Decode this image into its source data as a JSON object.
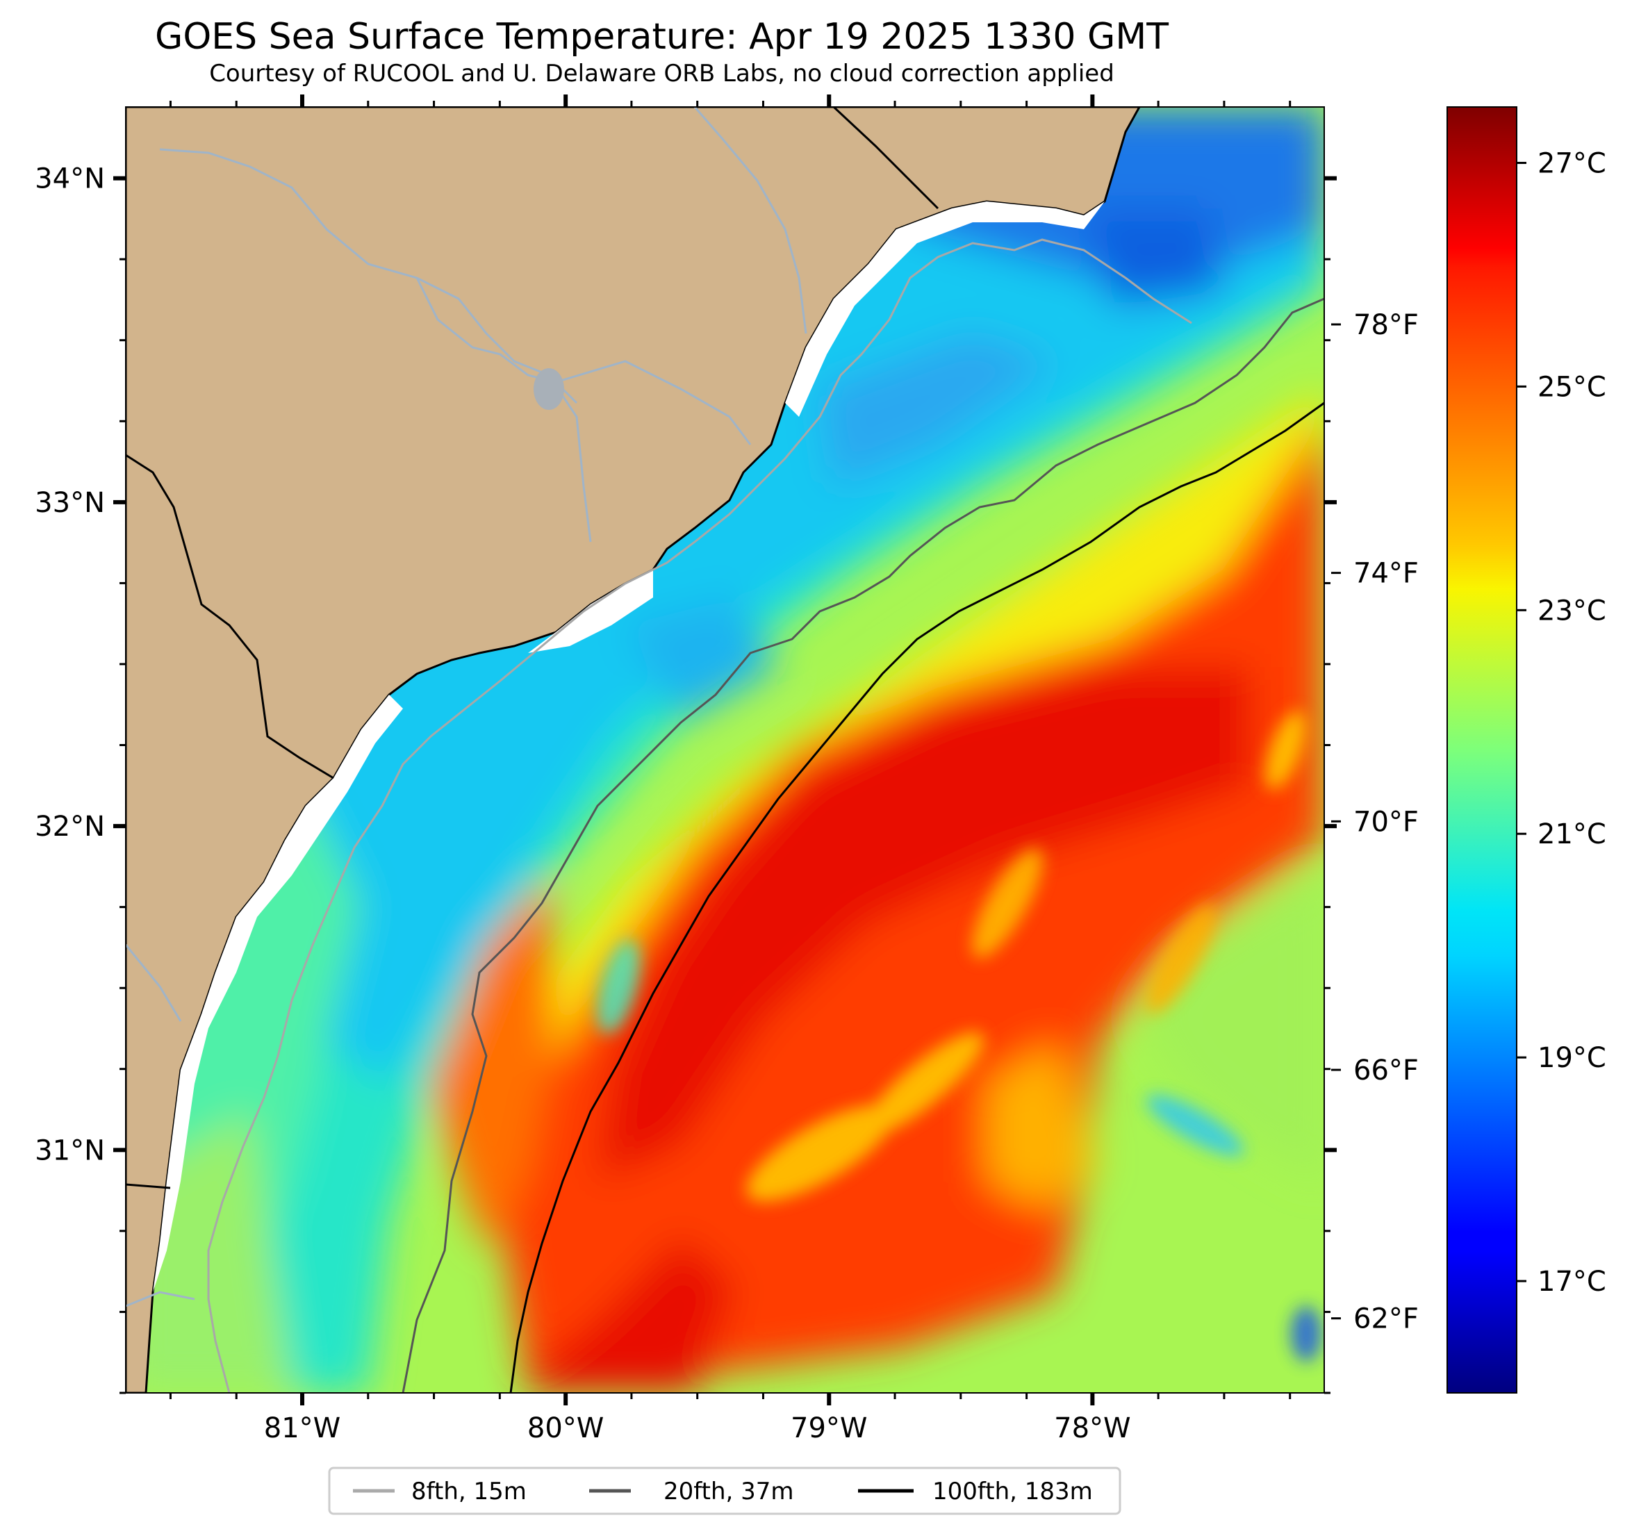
{
  "title": "GOES Sea Surface Temperature: Apr 19 2025 1330 GMT",
  "subtitle": "Courtesy of RUCOOL and U. Delaware ORB Labs, no cloud correction applied",
  "map": {
    "lon_range": [
      -81.67,
      -77.12
    ],
    "lat_range": [
      30.25,
      34.22
    ],
    "lon_ticks": [
      {
        "value": -81,
        "label": "81°W"
      },
      {
        "value": -80,
        "label": "80°W"
      },
      {
        "value": -79,
        "label": "79°W"
      },
      {
        "value": -78,
        "label": "78°W"
      }
    ],
    "lat_ticks": [
      {
        "value": 34,
        "label": "34°N"
      },
      {
        "value": 33,
        "label": "33°N"
      },
      {
        "value": 32,
        "label": "32°N"
      },
      {
        "value": 31,
        "label": "31°N"
      }
    ],
    "land_color": "#d2b48c",
    "river_color": "#a0b4c8"
  },
  "colorbar": {
    "colormap": "jet",
    "celsius_range": [
      16,
      27.5
    ],
    "celsius_ticks": [
      {
        "value": 27,
        "label": "27°C"
      },
      {
        "value": 25,
        "label": "25°C"
      },
      {
        "value": 23,
        "label": "23°C"
      },
      {
        "value": 21,
        "label": "21°C"
      },
      {
        "value": 19,
        "label": "19°C"
      },
      {
        "value": 17,
        "label": "17°C"
      }
    ],
    "fahrenheit_ticks": [
      {
        "value": 78,
        "label": "78°F"
      },
      {
        "value": 74,
        "label": "74°F"
      },
      {
        "value": 70,
        "label": "70°F"
      },
      {
        "value": 66,
        "label": "66°F"
      },
      {
        "value": 62,
        "label": "62°F"
      }
    ]
  },
  "legend": {
    "items": [
      {
        "label": "8fth, 15m",
        "color": "#aaaaaa"
      },
      {
        "label": "20fth, 37m",
        "color": "#555555"
      },
      {
        "label": "100fth, 183m",
        "color": "#000000"
      }
    ]
  }
}
